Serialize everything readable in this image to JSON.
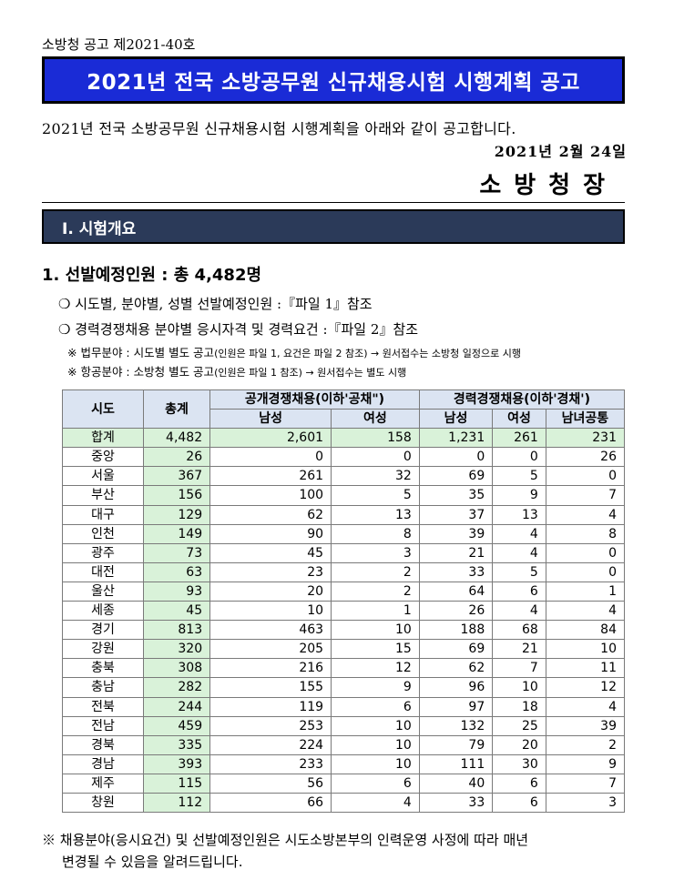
{
  "notice_no": "소방청 공고 제2021-40호",
  "title": "2021년 전국 소방공무원 신규채용시험 시행계획 공고",
  "intro": "2021년 전국 소방공무원 신규채용시험 시행계획을 아래와 같이 공고합니다.",
  "date": "2021년 2월 24일",
  "signer": "소방청장",
  "section": {
    "label": "Ⅰ. 시험개요"
  },
  "subheading": "1. 선발예정인원 : 총 4,482명",
  "bullets": [
    "❍ 시도별, 분야별, 성별 선발예정인원 :『파일 1』참조",
    "❍ 경력경쟁채용 분야별 응시자격 및 경력요건 :『파일 2』참조"
  ],
  "notes": [
    {
      "main": "※ 법무분야 : 시도별 별도 공고",
      "small": "(인원은 파일 1, 요건은 파일 2 참조) → 원서접수는 소방청 일정으로 시행"
    },
    {
      "main": "※ 항공분야 : 소방청 별도 공고",
      "small": "(인원은 파일 1 참조) → 원서접수는 별도 시행"
    }
  ],
  "table": {
    "h_region": "시도",
    "h_total": "총계",
    "h_open": "공개경쟁채용(이하'공채\")",
    "h_career": "경력경쟁채용(이하'경채')",
    "h_male": "남성",
    "h_female": "여성",
    "h_both": "남녀공통",
    "rows": [
      [
        "합계",
        "4,482",
        "2,601",
        "158",
        "1,231",
        "261",
        "231"
      ],
      [
        "중앙",
        "26",
        "0",
        "0",
        "0",
        "0",
        "26"
      ],
      [
        "서울",
        "367",
        "261",
        "32",
        "69",
        "5",
        "0"
      ],
      [
        "부산",
        "156",
        "100",
        "5",
        "35",
        "9",
        "7"
      ],
      [
        "대구",
        "129",
        "62",
        "13",
        "37",
        "13",
        "4"
      ],
      [
        "인천",
        "149",
        "90",
        "8",
        "39",
        "4",
        "8"
      ],
      [
        "광주",
        "73",
        "45",
        "3",
        "21",
        "4",
        "0"
      ],
      [
        "대전",
        "63",
        "23",
        "2",
        "33",
        "5",
        "0"
      ],
      [
        "울산",
        "93",
        "20",
        "2",
        "64",
        "6",
        "1"
      ],
      [
        "세종",
        "45",
        "10",
        "1",
        "26",
        "4",
        "4"
      ],
      [
        "경기",
        "813",
        "463",
        "10",
        "188",
        "68",
        "84"
      ],
      [
        "강원",
        "320",
        "205",
        "15",
        "69",
        "21",
        "10"
      ],
      [
        "충북",
        "308",
        "216",
        "12",
        "62",
        "7",
        "11"
      ],
      [
        "충남",
        "282",
        "155",
        "9",
        "96",
        "10",
        "12"
      ],
      [
        "전북",
        "244",
        "119",
        "6",
        "97",
        "18",
        "4"
      ],
      [
        "전남",
        "459",
        "253",
        "10",
        "132",
        "25",
        "39"
      ],
      [
        "경북",
        "335",
        "224",
        "10",
        "79",
        "20",
        "2"
      ],
      [
        "경남",
        "393",
        "233",
        "10",
        "111",
        "30",
        "9"
      ],
      [
        "제주",
        "115",
        "56",
        "6",
        "40",
        "6",
        "7"
      ],
      [
        "창원",
        "112",
        "66",
        "4",
        "33",
        "6",
        "3"
      ]
    ]
  },
  "footer": {
    "line1": "※ 채용분야(응시요건) 및 선발예정인원은 시도소방본부의 인력운영 사정에 따라 매년",
    "line2": "변경될 수 있음을 알려드립니다."
  }
}
